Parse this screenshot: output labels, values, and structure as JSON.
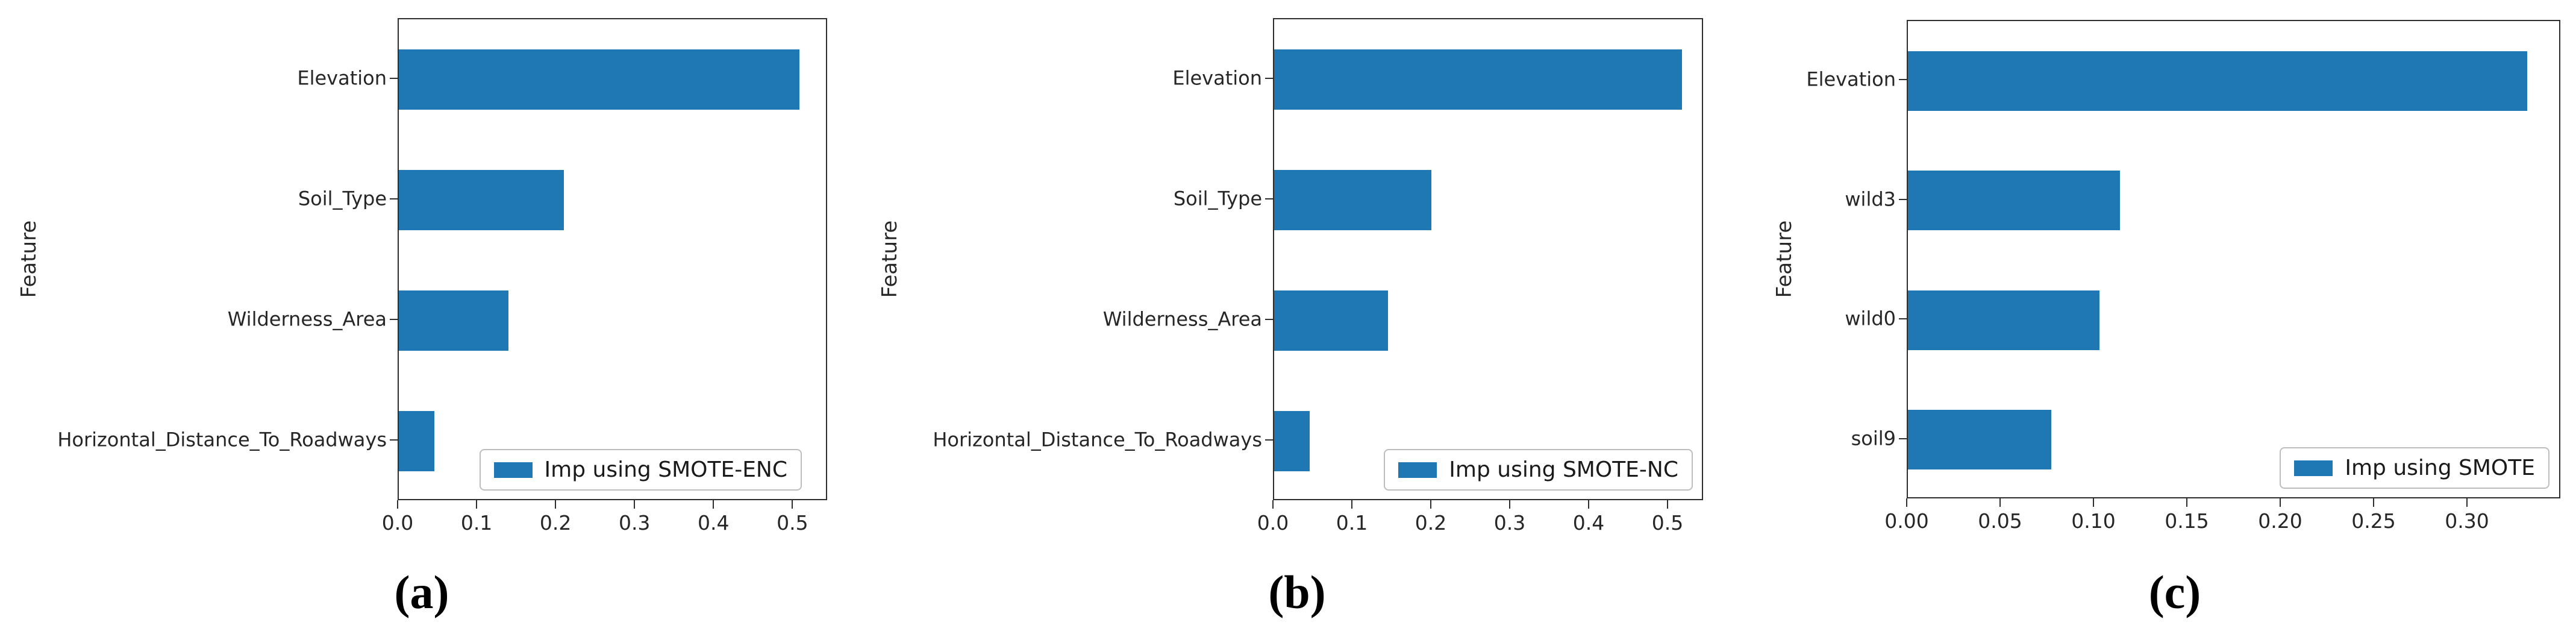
{
  "figure": {
    "bar_color": "#1f77b4",
    "spine_color": "#2e2e2e",
    "text_color": "#262626",
    "background": "#ffffff"
  },
  "chart_data": [
    {
      "type": "bar",
      "orientation": "horizontal",
      "caption": "(a)",
      "ylabel": "Feature",
      "xlabel": "",
      "categories": [
        "Elevation",
        "Soil_Type",
        "Wilderness_Area",
        "Horizontal_Distance_To_Roadways"
      ],
      "values": [
        0.51,
        0.21,
        0.14,
        0.045
      ],
      "legend": {
        "label": "Imp using SMOTE-ENC",
        "position": "lower right"
      },
      "xticks": [
        0.0,
        0.1,
        0.2,
        0.3,
        0.4,
        0.5
      ],
      "xtick_labels": [
        "0.0",
        "0.1",
        "0.2",
        "0.3",
        "0.4",
        "0.5"
      ],
      "xlim": [
        0,
        0.544
      ],
      "grid": false,
      "bar_color": "#1f77b4",
      "bar_width_fraction": 0.5
    },
    {
      "type": "bar",
      "orientation": "horizontal",
      "caption": "(b)",
      "ylabel": "Feature",
      "xlabel": "",
      "categories": [
        "Elevation",
        "Soil_Type",
        "Wilderness_Area",
        "Horizontal_Distance_To_Roadways"
      ],
      "values": [
        0.52,
        0.2,
        0.145,
        0.045
      ],
      "legend": {
        "label": "Imp using SMOTE-NC",
        "position": "lower right"
      },
      "xticks": [
        0.0,
        0.1,
        0.2,
        0.3,
        0.4,
        0.5
      ],
      "xtick_labels": [
        "0.0",
        "0.1",
        "0.2",
        "0.3",
        "0.4",
        "0.5"
      ],
      "xlim": [
        0,
        0.545
      ],
      "grid": false,
      "bar_color": "#1f77b4",
      "bar_width_fraction": 0.5
    },
    {
      "type": "bar",
      "orientation": "horizontal",
      "caption": "(c)",
      "ylabel": "Feature",
      "xlabel": "",
      "categories": [
        "Elevation",
        "wild3",
        "wild0",
        "soil9"
      ],
      "values": [
        0.333,
        0.114,
        0.103,
        0.077
      ],
      "legend": {
        "label": "Imp using SMOTE",
        "position": "lower right"
      },
      "xticks": [
        0.0,
        0.05,
        0.1,
        0.15,
        0.2,
        0.25,
        0.3
      ],
      "xtick_labels": [
        "0.00",
        "0.05",
        "0.10",
        "0.15",
        "0.20",
        "0.25",
        "0.30"
      ],
      "xlim": [
        0,
        0.35
      ],
      "grid": false,
      "bar_color": "#1f77b4",
      "bar_width_fraction": 0.5
    }
  ]
}
